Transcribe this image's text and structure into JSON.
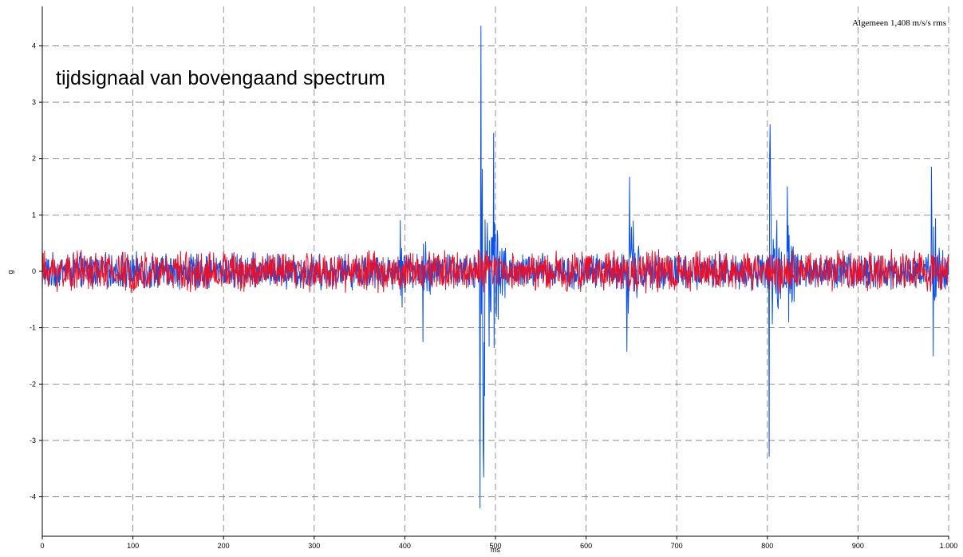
{
  "chart_data": {
    "type": "line",
    "title": "",
    "overall_text": "Algemeen 1,408 m/s/s rms",
    "annotation": "tijdsignaal van bovengaand spectrum",
    "xlabel": "ms",
    "ylabel": "g",
    "xlim": [
      0,
      1000
    ],
    "ylim": [
      -4.7,
      4.7
    ],
    "grid": true,
    "x_ticks": [
      0,
      100,
      200,
      300,
      400,
      500,
      600,
      700,
      800,
      900,
      1000
    ],
    "x_tick_labels": [
      "0",
      "100",
      "200",
      "300",
      "400",
      "500",
      "600",
      "700",
      "800",
      "900",
      "1.000"
    ],
    "y_ticks": [
      -4,
      -3,
      -2,
      -1,
      0,
      1,
      2,
      3,
      4
    ],
    "y_tick_labels": [
      "-4",
      "-3",
      "-2",
      "-1",
      "0",
      "1",
      "2",
      "3",
      "4"
    ],
    "series": [
      {
        "color": "#0a50e8",
        "noise_amplitude": 0.35,
        "peaks": [
          {
            "x": 395,
            "value": 0.9
          },
          {
            "x": 420,
            "value": -1.25
          },
          {
            "x": 483,
            "value": -4.2
          },
          {
            "x": 484,
            "value": 4.35
          },
          {
            "x": 487,
            "value": -3.65
          },
          {
            "x": 498,
            "value": 2.45
          },
          {
            "x": 645,
            "value": -1.42
          },
          {
            "x": 648,
            "value": 1.67
          },
          {
            "x": 802,
            "value": -3.28
          },
          {
            "x": 803,
            "value": 2.6
          },
          {
            "x": 822,
            "value": 1.5
          },
          {
            "x": 981,
            "value": 1.85
          },
          {
            "x": 983,
            "value": -1.5
          }
        ]
      },
      {
        "color": "#e8102a",
        "noise_amplitude": 0.4,
        "peaks": []
      }
    ]
  }
}
